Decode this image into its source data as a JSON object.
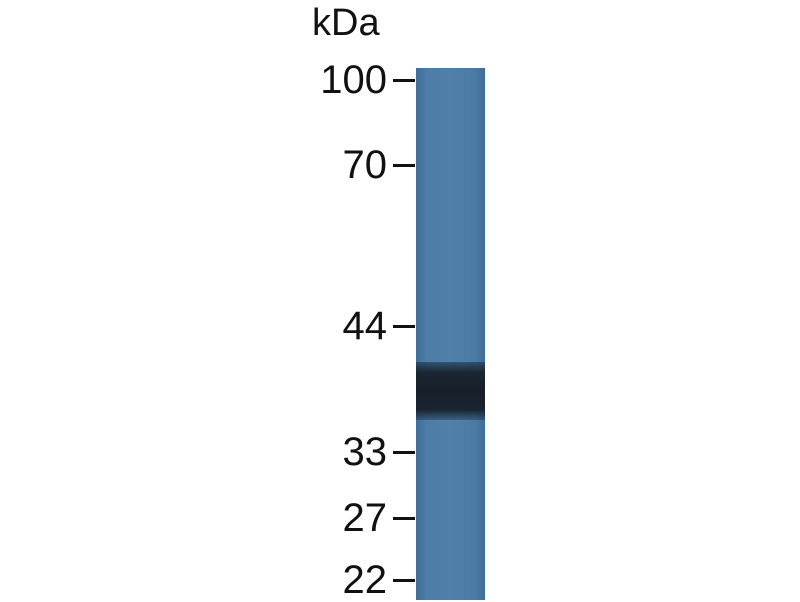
{
  "unit_label": "kDa",
  "markers": [
    {
      "label": "100",
      "kda": 100
    },
    {
      "label": "70",
      "kda": 70
    },
    {
      "label": "44",
      "kda": 44
    },
    {
      "label": "33",
      "kda": 33
    },
    {
      "label": "27",
      "kda": 27
    },
    {
      "label": "22",
      "kda": 22
    }
  ],
  "lanes": 1,
  "band": {
    "approx_kda": 38
  },
  "colors": {
    "lane": "#4b7ba6",
    "band": "#172029",
    "text": "#111111"
  }
}
